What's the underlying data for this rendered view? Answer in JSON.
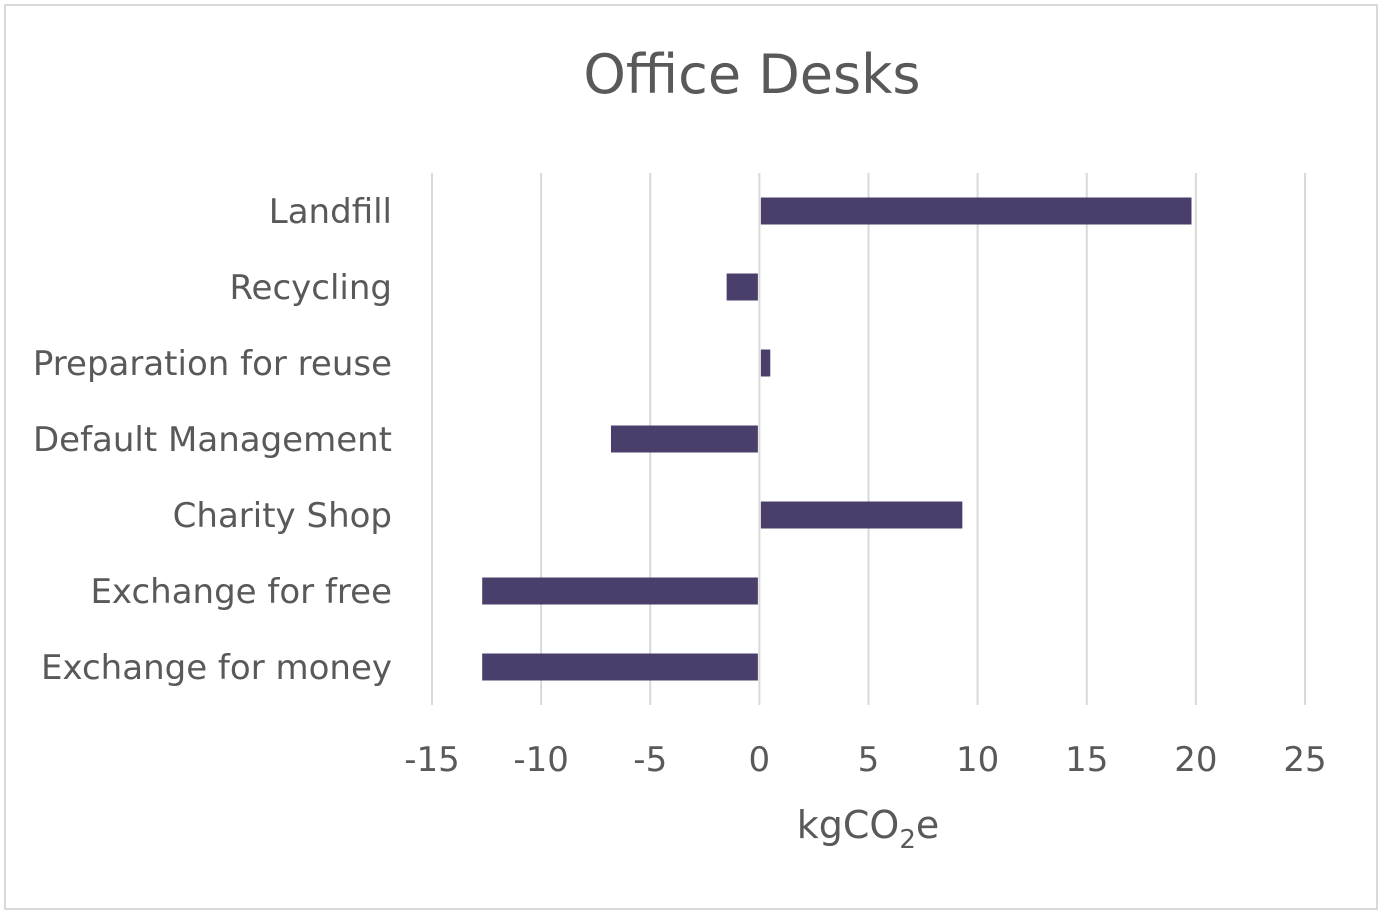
{
  "chart_data": {
    "type": "bar",
    "orientation": "horizontal",
    "title": "Office Desks",
    "xlabel": {
      "base": "kgCO",
      "subscript": "2",
      "suffix": "e"
    },
    "ylabel": "",
    "categories": [
      "Landfill",
      "Recycling",
      "Preparation for reuse",
      "Default Management",
      "Charity Shop",
      "Exchange for free",
      "Exchange for money"
    ],
    "values": [
      19.8,
      -1.5,
      0.5,
      -6.8,
      9.3,
      -12.7,
      -12.7
    ],
    "xlim": [
      -15,
      25
    ],
    "xticks": [
      -15,
      -10,
      -5,
      0,
      5,
      10,
      15,
      20,
      25
    ],
    "grid": "vertical",
    "legend": "none",
    "colors": {
      "bar": "#4a3f6b",
      "grid": "#d9d9d9",
      "text": "#595959",
      "border": "#d9d9d9"
    }
  }
}
